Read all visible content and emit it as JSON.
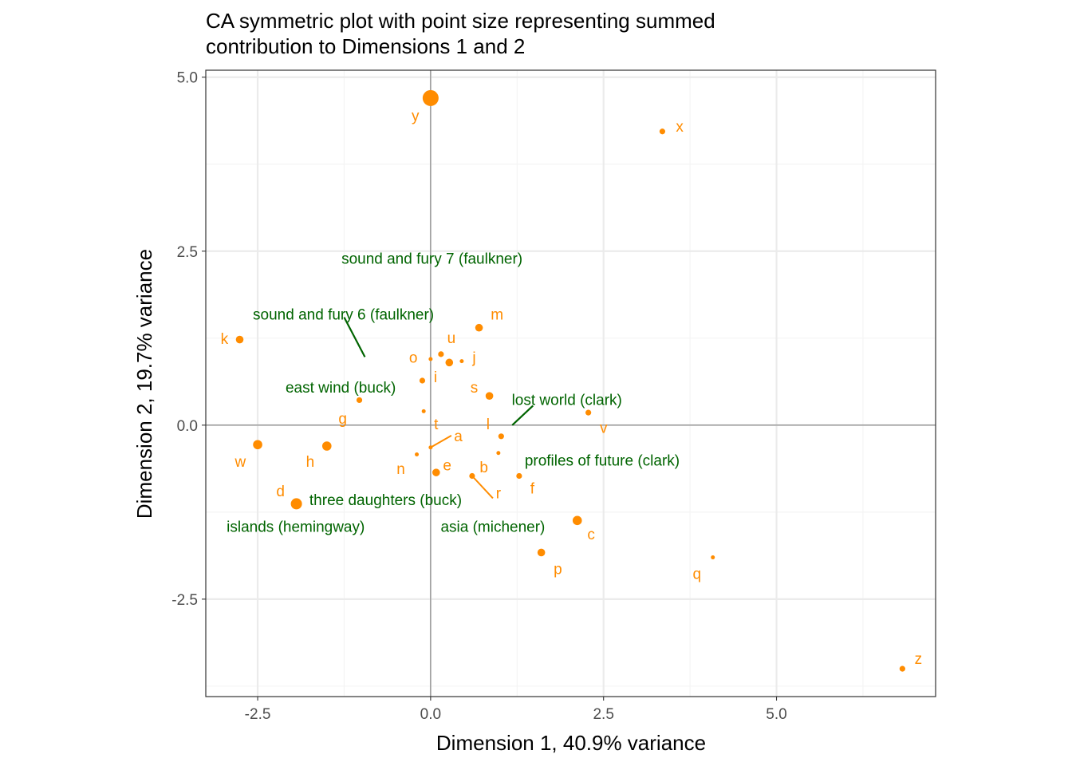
{
  "chart_data": {
    "type": "scatter",
    "title": "CA symmetric plot with point size representing summed contribution to Dimensions 1 and 2",
    "title_lines": [
      "CA symmetric plot with point size representing summed",
      "contribution to Dimensions 1 and 2"
    ],
    "xlabel": "Dimension 1, 40.9% variance",
    "ylabel": "Dimension 2, 19.7% variance",
    "xlim": [
      -3.25,
      7.3
    ],
    "ylim": [
      -3.9,
      5.1
    ],
    "x_ticks": [
      -2.5,
      0.0,
      2.5,
      5.0
    ],
    "x_tick_labels": [
      "-2.5",
      "0.0",
      "2.5",
      "5.0"
    ],
    "y_ticks": [
      -2.5,
      0.0,
      2.5,
      5.0
    ],
    "y_tick_labels": [
      "-2.5",
      "0.0",
      "2.5",
      "5.0"
    ],
    "grid": true,
    "legend": "none",
    "colors": {
      "letters": "#FF8C00",
      "texts": "#006400",
      "axis_line": "#7f7f7f",
      "grid_major": "#ebebeb",
      "grid_minor": "#f4f4f4",
      "panel_border": "#333333"
    },
    "series": [
      {
        "name": "letters",
        "points": [
          {
            "label": "y",
            "x": 0.0,
            "y": 4.7,
            "size": 5,
            "lx": -0.22,
            "ly": 4.45
          },
          {
            "label": "x",
            "x": 3.35,
            "y": 4.22,
            "size": 1,
            "lx": 3.6,
            "ly": 4.3
          },
          {
            "label": "m",
            "x": 0.7,
            "y": 1.4,
            "size": 2,
            "lx": 0.96,
            "ly": 1.6
          },
          {
            "label": "k",
            "x": -2.76,
            "y": 1.23,
            "size": 2,
            "lx": -2.98,
            "ly": 1.25
          },
          {
            "label": "u",
            "x": 0.15,
            "y": 1.02,
            "size": 1,
            "lx": 0.3,
            "ly": 1.26
          },
          {
            "label": "o",
            "x": 0.0,
            "y": 0.95,
            "size": 0,
            "lx": -0.25,
            "ly": 0.98
          },
          {
            "label": "j",
            "x": 0.45,
            "y": 0.92,
            "size": 0,
            "lx": 0.63,
            "ly": 0.98
          },
          {
            "label": "i",
            "x": 0.27,
            "y": 0.9,
            "size": 2,
            "lx": 0.07,
            "ly": 0.7
          },
          {
            "label": "i2",
            "x": -0.12,
            "y": 0.64,
            "size": 1,
            "lx": null,
            "ly": null
          },
          {
            "label": "s",
            "x": 0.85,
            "y": 0.42,
            "size": 2,
            "lx": 0.63,
            "ly": 0.55
          },
          {
            "label": "g",
            "x": -1.03,
            "y": 0.36,
            "size": 1,
            "lx": -1.27,
            "ly": 0.1
          },
          {
            "label": "t",
            "x": -0.1,
            "y": 0.2,
            "size": 0,
            "lx": 0.08,
            "ly": 0.02
          },
          {
            "label": "v",
            "x": 2.28,
            "y": 0.18,
            "size": 1,
            "lx": 2.5,
            "ly": -0.03
          },
          {
            "label": "l",
            "x": 1.02,
            "y": -0.16,
            "size": 1,
            "lx": 0.83,
            "ly": 0.02
          },
          {
            "label": "a",
            "x": 0.0,
            "y": -0.32,
            "size": 0,
            "lx": 0.4,
            "ly": -0.15
          },
          {
            "label": "w",
            "x": -2.5,
            "y": -0.28,
            "size": 3,
            "lx": -2.75,
            "ly": -0.52
          },
          {
            "label": "h",
            "x": -1.5,
            "y": -0.3,
            "size": 3,
            "lx": -1.74,
            "ly": -0.52
          },
          {
            "label": "profiles-dot",
            "x": 0.98,
            "y": -0.4,
            "size": 0,
            "lx": null,
            "ly": null
          },
          {
            "label": "n",
            "x": -0.2,
            "y": -0.42,
            "size": 0,
            "lx": -0.43,
            "ly": -0.62
          },
          {
            "label": "e",
            "x": 0.08,
            "y": -0.68,
            "size": 2,
            "lx": 0.24,
            "ly": -0.57
          },
          {
            "label": "b",
            "x": 0.6,
            "y": -0.73,
            "size": 1,
            "lx": 0.77,
            "ly": -0.6
          },
          {
            "label": "f",
            "x": 1.28,
            "y": -0.73,
            "size": 1,
            "lx": 1.47,
            "ly": -0.9
          },
          {
            "label": "r",
            "x": 0.6,
            "y": -0.73,
            "size": 0,
            "lx": 0.98,
            "ly": -0.97
          },
          {
            "label": "d",
            "x": -1.94,
            "y": -1.13,
            "size": 4,
            "lx": -2.17,
            "ly": -0.94
          },
          {
            "label": "c",
            "x": 2.12,
            "y": -1.37,
            "size": 3,
            "lx": 2.32,
            "ly": -1.56
          },
          {
            "label": "p",
            "x": 1.6,
            "y": -1.83,
            "size": 2,
            "lx": 1.84,
            "ly": -2.06
          },
          {
            "label": "q",
            "x": 4.08,
            "y": -1.9,
            "size": 0,
            "lx": 3.85,
            "ly": -2.13
          },
          {
            "label": "z",
            "x": 6.82,
            "y": -3.5,
            "size": 1,
            "lx": 7.05,
            "ly": -3.35
          }
        ]
      },
      {
        "name": "texts",
        "labels": [
          {
            "text": "sound and fury 7 (faulkner)",
            "lx": 0.02,
            "ly": 2.4
          },
          {
            "text": "sound and fury 6 (faulkner)",
            "lx": -1.26,
            "ly": 1.6
          },
          {
            "text": "east wind (buck)",
            "lx": -1.3,
            "ly": 0.55
          },
          {
            "text": "lost world (clark)",
            "lx": 1.97,
            "ly": 0.37
          },
          {
            "text": "profiles of future (clark)",
            "lx": 2.48,
            "ly": -0.5
          },
          {
            "text": "three daughters (buck)",
            "lx": -0.65,
            "ly": -1.07
          },
          {
            "text": "islands (hemingway)",
            "lx": -1.95,
            "ly": -1.45
          },
          {
            "text": "asia (michener)",
            "lx": 0.9,
            "ly": -1.45
          }
        ]
      }
    ]
  }
}
